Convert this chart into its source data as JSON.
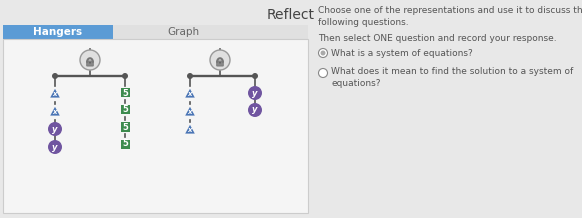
{
  "title": "Reflect",
  "tab_hangers": "Hangers",
  "tab_graph": "Graph",
  "right_text_1a": "Choose one of the representations and use it to discuss the",
  "right_text_1b": "following questions.",
  "right_text_2": "Then select ONE question and record your response.",
  "q1": "What is a system of equations?",
  "q2a": "What does it mean to find the solution to a system of",
  "q2b": "equations?",
  "bg_color": "#e8e8e8",
  "panel_bg": "#f5f5f5",
  "tab_hangers_bg": "#5b9bd5",
  "tab_graph_bg": "#e0e0e0",
  "tab_hangers_fg": "#ffffff",
  "tab_graph_fg": "#666666",
  "green_box": "#3d8b4e",
  "purple_circle": "#7055a0",
  "blue_triangle": "#4a75b5",
  "line_color": "#555555",
  "lock_fill": "#e0e0e0",
  "lock_stroke": "#999999",
  "panel_border": "#cccccc",
  "title_color": "#444444",
  "text_color": "#555555"
}
